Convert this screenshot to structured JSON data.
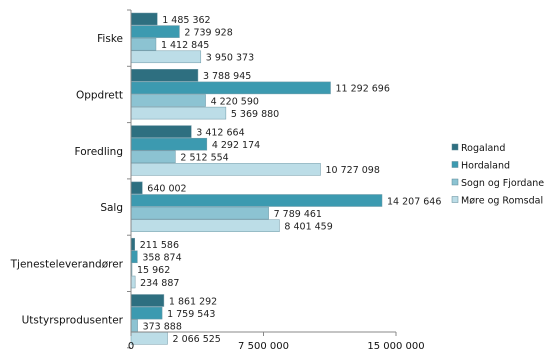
{
  "chart_data": {
    "type": "bar",
    "orientation": "horizontal",
    "categories": [
      "Fiske",
      "Oppdrett",
      "Foredling",
      "Salg",
      "Tjenesteleverandører",
      "Utstyrsprodusenter"
    ],
    "series": [
      {
        "name": "Rogaland",
        "color": "#2E6F80",
        "values": [
          1485362,
          3788945,
          3412664,
          640002,
          211586,
          1861292
        ]
      },
      {
        "name": "Hordaland",
        "color": "#3C9AB0",
        "values": [
          2739928,
          11292696,
          4292174,
          14207646,
          358874,
          1759543
        ]
      },
      {
        "name": "Sogn og Fjordane",
        "color": "#8CC3D2",
        "values": [
          1412845,
          4220590,
          2512554,
          7789461,
          15962,
          373888
        ]
      },
      {
        "name": "Møre og Romsdal",
        "color": "#BCDDE7",
        "values": [
          3950373,
          5369880,
          10727098,
          8401459,
          234887,
          2066525
        ]
      }
    ],
    "value_labels": [
      [
        "1 485 362",
        "2 739 928",
        "1 412 845",
        "3 950 373"
      ],
      [
        "3 788 945",
        "11 292 696",
        "4 220 590",
        "5 369 880"
      ],
      [
        "3 412 664",
        "4 292 174",
        "2 512 554",
        "10 727 098"
      ],
      [
        "640 002",
        "14 207 646",
        "7 789 461",
        "8 401 459"
      ],
      [
        "211 586",
        "358 874",
        "15 962",
        "234 887"
      ],
      [
        "1 861 292",
        "1 759 543",
        "373 888",
        "2 066 525"
      ]
    ],
    "xlim": [
      0,
      15000000
    ],
    "x_ticks": [
      {
        "value": 0,
        "label": "0"
      },
      {
        "value": 7500000,
        "label": "7 500 000"
      },
      {
        "value": 15000000,
        "label": "15 000 000"
      }
    ],
    "legend_position": "right",
    "grid": false
  }
}
